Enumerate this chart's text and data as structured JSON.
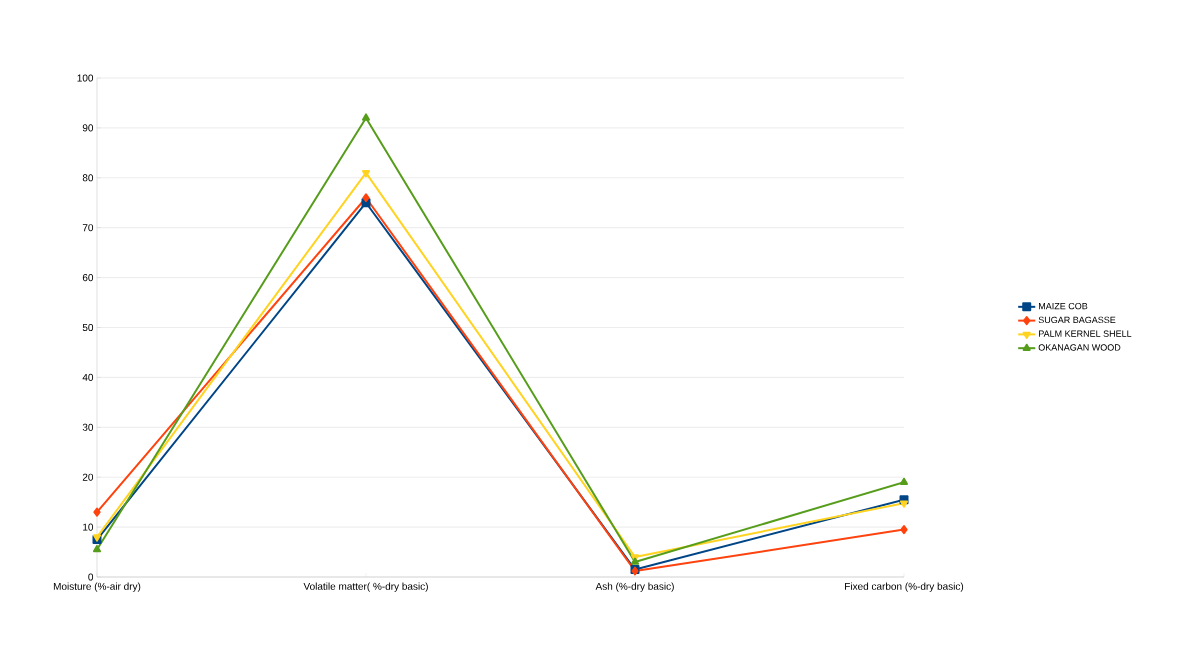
{
  "chart_data": {
    "type": "line",
    "categories": [
      "Moisture (%-air dry)",
      "Volatile matter( %-dry basic)",
      "Ash (%-dry basic)",
      "Fixed carbon (%-dry basic)"
    ],
    "series": [
      {
        "name": "MAIZE COB",
        "color": "#004586",
        "marker": "square",
        "values": [
          7.5,
          75,
          1.5,
          15.5
        ]
      },
      {
        "name": "SUGAR BAGASSE",
        "color": "#ff420e",
        "marker": "diamond",
        "values": [
          13,
          76,
          1.2,
          9.5
        ]
      },
      {
        "name": "PALM KERNEL SHELL",
        "color": "#ffd320",
        "marker": "triangle_down",
        "values": [
          8,
          81,
          4,
          14.8
        ]
      },
      {
        "name": "OKANAGAN WOOD",
        "color": "#579d1c",
        "marker": "triangle",
        "values": [
          5.5,
          92,
          3,
          19
        ]
      }
    ],
    "ylim": [
      0,
      100
    ],
    "yticks": [
      0,
      10,
      20,
      30,
      40,
      50,
      60,
      70,
      80,
      90,
      100
    ],
    "grid": "y",
    "legend": "right"
  }
}
